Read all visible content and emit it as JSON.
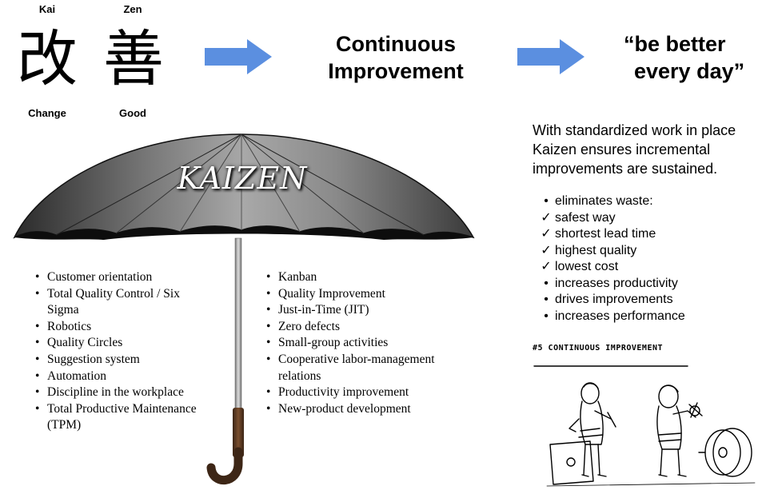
{
  "kanji": {
    "kai": {
      "reading": "Kai",
      "character": "改",
      "meaning": "Change"
    },
    "zen": {
      "reading": "Zen",
      "character": "善",
      "meaning": "Good"
    }
  },
  "headline_middle": [
    "Continuous",
    "Improvement"
  ],
  "headline_right": [
    "“be better",
    "every day”"
  ],
  "umbrella_title": "KAIZEN",
  "description": [
    "With standardized work in place",
    "Kaizen ensures incremental",
    "improvements are sustained."
  ],
  "right_list": [
    {
      "mark": "•",
      "text": "eliminates waste:"
    },
    {
      "mark": "✓",
      "text": "safest way"
    },
    {
      "mark": "✓",
      "text": "shortest lead time"
    },
    {
      "mark": "✓",
      "text": "highest quality"
    },
    {
      "mark": "✓",
      "text": "lowest cost"
    },
    {
      "mark": "•",
      "text": "increases productivity"
    },
    {
      "mark": "•",
      "text": "drives improvements"
    },
    {
      "mark": "•",
      "text": "increases performance"
    }
  ],
  "left_bullets": [
    "Customer orientation",
    "Total Quality Control / Six Sigma",
    "Robotics",
    "Quality Circles",
    "Suggestion system",
    "Automation",
    "Discipline in the workplace",
    "Total Productive Maintenance (TPM)"
  ],
  "middle_bullets": [
    "Kanban",
    "Quality Improvement",
    "Just-in-Time (JIT)",
    "Zero defects",
    "Small-group activities",
    "Cooperative labor-management relations",
    "Productivity improvement",
    "New-product development"
  ],
  "cartoon_caption": "#5 CONTINUOUS IMPROVEMENT",
  "colors": {
    "arrow": "#5b8fe0",
    "umbrella_dark": "#1a1a1a",
    "umbrella_light": "#a8a8a8",
    "handle": "#4a2e1a"
  }
}
